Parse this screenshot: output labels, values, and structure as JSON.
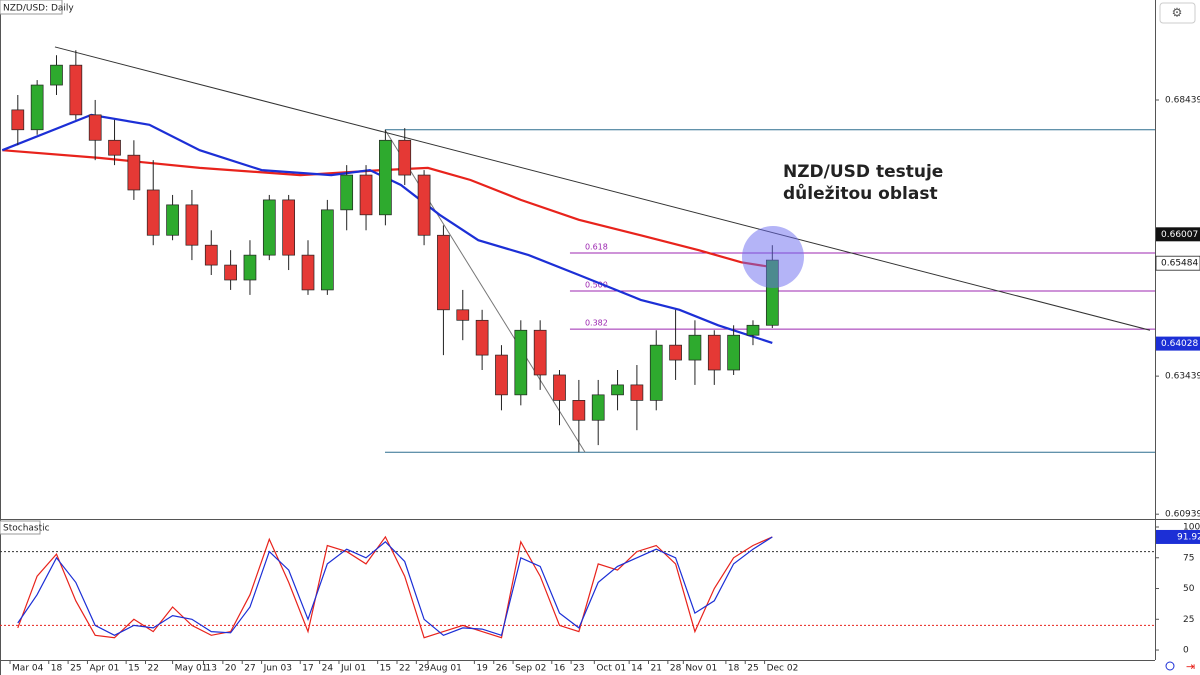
{
  "chart_data": [
    {
      "type": "candlestick",
      "title": "NZD/USD: Daily",
      "x": [
        2,
        7,
        12,
        17,
        22,
        27,
        32,
        37,
        42,
        47,
        52,
        57,
        62,
        67,
        72,
        77,
        82,
        87,
        92,
        97,
        102,
        107,
        112,
        117,
        122,
        127,
        132,
        137,
        142,
        147,
        152,
        157,
        162,
        167,
        172,
        177,
        182,
        187,
        192,
        197
      ],
      "open": [
        0.6826,
        0.679,
        0.6871,
        0.6907,
        0.6817,
        0.6771,
        0.6744,
        0.6681,
        0.6599,
        0.6654,
        0.6581,
        0.6545,
        0.6518,
        0.6563,
        0.6663,
        0.6563,
        0.65,
        0.6645,
        0.6708,
        0.6636,
        0.6771,
        0.6708,
        0.6599,
        0.6464,
        0.6445,
        0.6382,
        0.631,
        0.6427,
        0.6346,
        0.63,
        0.6264,
        0.631,
        0.6328,
        0.63,
        0.64,
        0.6373,
        0.6418,
        0.6355,
        0.6418,
        0.6436
      ],
      "high": [
        0.6853,
        0.688,
        0.6925,
        0.6934,
        0.6844,
        0.6808,
        0.6771,
        0.6735,
        0.6672,
        0.6681,
        0.6608,
        0.6572,
        0.659,
        0.6672,
        0.6672,
        0.659,
        0.6663,
        0.6726,
        0.6726,
        0.679,
        0.6793,
        0.6717,
        0.6617,
        0.65,
        0.6464,
        0.64,
        0.6445,
        0.6445,
        0.6355,
        0.6337,
        0.6337,
        0.6355,
        0.6364,
        0.6427,
        0.6464,
        0.6445,
        0.6427,
        0.6436,
        0.6445,
        0.6581
      ],
      "low": [
        0.6762,
        0.6781,
        0.6853,
        0.6808,
        0.6735,
        0.6726,
        0.6663,
        0.6581,
        0.659,
        0.6554,
        0.6527,
        0.65,
        0.6491,
        0.6554,
        0.6536,
        0.6491,
        0.6491,
        0.6608,
        0.6608,
        0.6617,
        0.669,
        0.6581,
        0.6382,
        0.6409,
        0.6355,
        0.6282,
        0.6291,
        0.6319,
        0.6255,
        0.6206,
        0.6219,
        0.6282,
        0.6246,
        0.6282,
        0.6337,
        0.6328,
        0.6328,
        0.6346,
        0.64,
        0.6431
      ],
      "close": [
        0.679,
        0.6871,
        0.6907,
        0.6817,
        0.6771,
        0.6744,
        0.6681,
        0.6599,
        0.6654,
        0.6581,
        0.6545,
        0.6518,
        0.6563,
        0.6663,
        0.6563,
        0.65,
        0.6645,
        0.6708,
        0.6636,
        0.6771,
        0.6708,
        0.6599,
        0.6464,
        0.6445,
        0.6382,
        0.631,
        0.6427,
        0.6346,
        0.63,
        0.6264,
        0.631,
        0.6328,
        0.63,
        0.64,
        0.6373,
        0.6418,
        0.6355,
        0.6418,
        0.6436,
        0.6554
      ],
      "up_color": "#2eaa2e",
      "down_color": "#e53935",
      "series": [
        {
          "color": "#e8231c",
          "x": [
            -2,
            23,
            49,
            75,
            96,
            108,
            119,
            132,
            147,
            163,
            178,
            189,
            198
          ],
          "values": [
            0.6753,
            0.6739,
            0.6721,
            0.6708,
            0.6717,
            0.6721,
            0.6699,
            0.6663,
            0.6627,
            0.6599,
            0.6572,
            0.655,
            0.654
          ]
        },
        {
          "color": "#1c2fd6",
          "x": [
            -2,
            21,
            36,
            49,
            65,
            83,
            93,
            101,
            111,
            121,
            134,
            147,
            163,
            173,
            183,
            197
          ],
          "values": [
            0.6753,
            0.6817,
            0.6799,
            0.6753,
            0.6717,
            0.6708,
            0.6717,
            0.669,
            0.6636,
            0.659,
            0.6563,
            0.6527,
            0.6482,
            0.6464,
            0.6436,
            0.6404
          ]
        }
      ],
      "trendline": {
        "x": [
          11.6,
          294.6
        ],
        "values": [
          0.694,
          0.6427
        ],
        "color": "#333333"
      },
      "fib": {
        "x": [
          96.9,
          148.6
        ],
        "high": 0.679,
        "low": 0.6206,
        "level_start": 144.7,
        "color": "#2f6f8f",
        "level_color": "#9c27b0",
        "levels": [
          0.618,
          {
            "value": 0.5,
            "label": "0.500"
          },
          0.382
        ]
      },
      "annotation": [
        "NZD/USD testuje",
        "důležitou oblast"
      ],
      "xlim": [
        -2.6,
        295.9
      ],
      "ylim": [
        0.6087,
        0.7025
      ],
      "yticks": [
        0.68439,
        0.63439,
        0.60939
      ],
      "marker_levels": [
        0.66007,
        0.65484,
        0.64028
      ],
      "marker_colors": [
        "#111111",
        "#ffffff",
        "#1c2fd6"
      ],
      "xticks": [
        {
          "value": 0,
          "label": "Mar 04"
        },
        {
          "value": 10,
          "label": "18"
        },
        {
          "value": 15,
          "label": "25"
        },
        {
          "value": 20,
          "label": "Apr 01"
        },
        {
          "value": 30,
          "label": "15"
        },
        {
          "value": 35,
          "label": "22"
        },
        {
          "value": 42,
          "label": "May 01"
        },
        {
          "value": 50,
          "label": "13"
        },
        {
          "value": 55,
          "label": "20"
        },
        {
          "value": 60,
          "label": "27"
        },
        {
          "value": 65,
          "label": "Jun 03"
        },
        {
          "value": 75,
          "label": "17"
        },
        {
          "value": 80,
          "label": "24"
        },
        {
          "value": 85,
          "label": "Jul 01"
        },
        {
          "value": 95,
          "label": "15"
        },
        {
          "value": 100,
          "label": "22"
        },
        {
          "value": 105,
          "label": "29"
        },
        {
          "value": 108,
          "label": "Aug 01"
        },
        {
          "value": 120,
          "label": "19"
        },
        {
          "value": 125,
          "label": "26"
        },
        {
          "value": 130,
          "label": "Sep 02"
        },
        {
          "value": 140,
          "label": "16"
        },
        {
          "value": 145,
          "label": "23"
        },
        {
          "value": 151,
          "label": "Oct 01"
        },
        {
          "value": 160,
          "label": "14"
        },
        {
          "value": 165,
          "label": "21"
        },
        {
          "value": 170,
          "label": "28"
        },
        {
          "value": 174,
          "label": "Nov 01"
        },
        {
          "value": 185,
          "label": "18"
        },
        {
          "value": 190,
          "label": "25"
        },
        {
          "value": 195,
          "label": "Dec 02"
        }
      ]
    },
    {
      "type": "line",
      "title": "Stochastic",
      "x": [
        2,
        7,
        12,
        17,
        22,
        27,
        32,
        37,
        42,
        47,
        52,
        57,
        62,
        67,
        72,
        77,
        82,
        87,
        92,
        97,
        102,
        107,
        112,
        117,
        122,
        127,
        132,
        137,
        142,
        147,
        152,
        157,
        162,
        167,
        172,
        177,
        182,
        187,
        192,
        197
      ],
      "series": [
        {
          "color": "#e8231c",
          "values": [
            18,
            60,
            78,
            40,
            12,
            10,
            25,
            15,
            35,
            20,
            12,
            15,
            45,
            90,
            55,
            15,
            85,
            80,
            70,
            92,
            60,
            10,
            15,
            20,
            15,
            10,
            88,
            60,
            20,
            15,
            70,
            65,
            80,
            85,
            70,
            15,
            50,
            75,
            85,
            92
          ]
        },
        {
          "color": "#1c2fd6",
          "values": [
            22,
            45,
            75,
            55,
            20,
            12,
            20,
            18,
            28,
            25,
            15,
            14,
            35,
            80,
            65,
            25,
            70,
            82,
            75,
            88,
            72,
            25,
            12,
            18,
            17,
            12,
            75,
            68,
            30,
            18,
            55,
            68,
            75,
            82,
            75,
            30,
            40,
            70,
            82,
            91.92
          ]
        }
      ],
      "levels": [
        80,
        20
      ],
      "level_colors": [
        "#333333",
        "#e8231c"
      ],
      "ylim": [
        -8.1,
        105.7
      ],
      "yticks": [
        0,
        25,
        50,
        75,
        100
      ]
    }
  ]
}
